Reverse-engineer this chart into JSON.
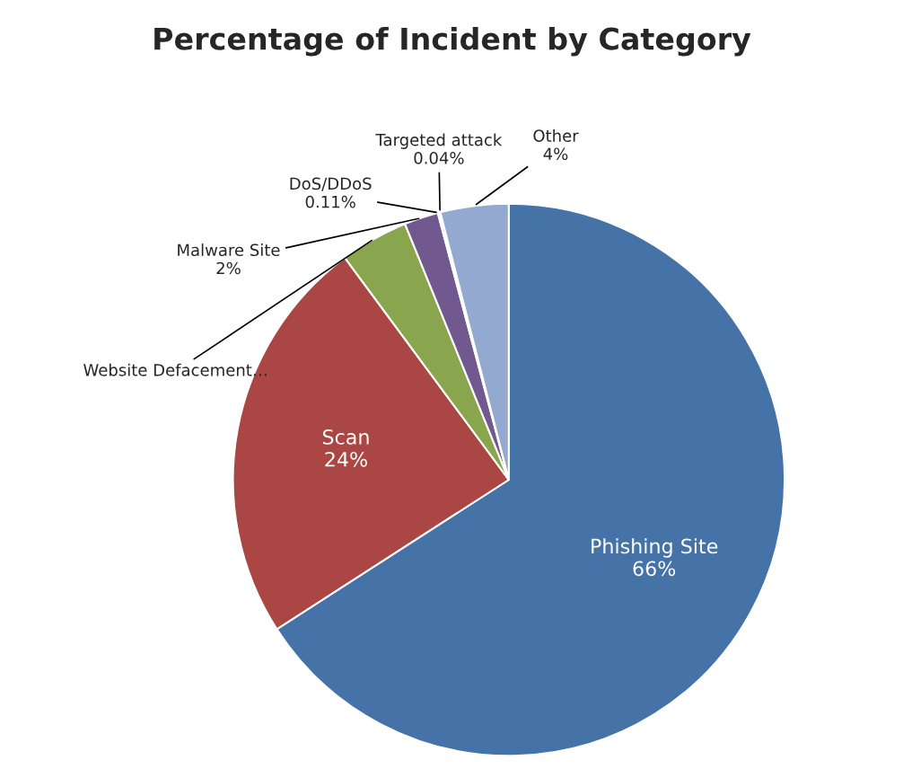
{
  "chart_data": {
    "type": "pie",
    "title": "Percentage of Incident by Category",
    "categories": [
      "Phishing Site",
      "Scan",
      "Website Defacement…",
      "Malware Site",
      "DoS/DDoS",
      "Targeted attack",
      "Other"
    ],
    "values": [
      66,
      24,
      4,
      2,
      0.11,
      0.04,
      4
    ],
    "value_labels": [
      "66%",
      "24%",
      null,
      "2%",
      "0.11%",
      "0.04%",
      "4%"
    ],
    "colors": [
      "#4572a7",
      "#aa4643",
      "#89a54e",
      "#71588f",
      "#4198af",
      "#db843d",
      "#93a9cf"
    ],
    "legend": false
  }
}
